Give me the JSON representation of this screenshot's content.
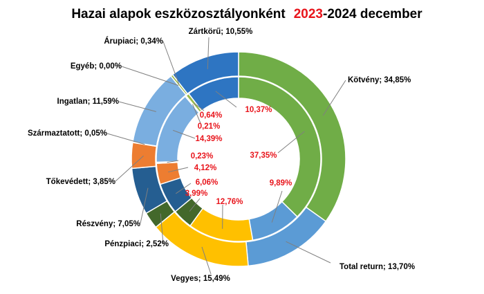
{
  "chart_data": {
    "type": "donut",
    "title": {
      "prefix": "Hazai alapok eszközosztályonként",
      "highlight": "2023",
      "suffix": "-2024 december"
    },
    "rings": [
      {
        "name": "2024 december",
        "ring": "outer",
        "segments": [
          {
            "label": "Kötvény",
            "value": 34.85,
            "text": "Kötvény; 34,85%",
            "color": "#70ad47"
          },
          {
            "label": "Total return",
            "value": 13.7,
            "text": "Total return; 13,70%",
            "color": "#5b9bd5"
          },
          {
            "label": "Vegyes",
            "value": 15.49,
            "text": "Vegyes; 15,49%",
            "color": "#ffc000"
          },
          {
            "label": "Pénzpiaci",
            "value": 2.52,
            "text": "Pénzpiaci; 2,52%",
            "color": "#43682b"
          },
          {
            "label": "Részvény",
            "value": 7.05,
            "text": "Részvény; 7,05%",
            "color": "#255e91"
          },
          {
            "label": "Tőkevédett",
            "value": 3.85,
            "text": "Tőkevédett; 3,85%",
            "color": "#ed7d31"
          },
          {
            "label": "Származtatott",
            "value": 0.05,
            "text": "Származtatott; 0,05%",
            "color": "#a5a5a5"
          },
          {
            "label": "Ingatlan",
            "value": 11.59,
            "text": "Ingatlan; 11,59%",
            "color": "#7aaee0"
          },
          {
            "label": "Egyéb",
            "value": 0.0,
            "text": "Egyéb; 0,00%",
            "color": "#9e480e"
          },
          {
            "label": "Árupiaci",
            "value": 0.34,
            "text": "Árupiaci; 0,34%",
            "color": "#9ab94a"
          },
          {
            "label": "Zártkörű",
            "value": 10.55,
            "text": "Zártkörű; 10,55%",
            "color": "#2e75c2"
          }
        ]
      },
      {
        "name": "2023",
        "ring": "inner",
        "segments": [
          {
            "label": "Kötvény",
            "value": 37.35,
            "text": "37,35%",
            "color": "#70ad47"
          },
          {
            "label": "Total return",
            "value": 9.89,
            "text": "9,89%",
            "color": "#5b9bd5"
          },
          {
            "label": "Vegyes",
            "value": 12.76,
            "text": "12,76%",
            "color": "#ffc000"
          },
          {
            "label": "Pénzpiaci",
            "value": 3.99,
            "text": "3,99%",
            "color": "#43682b"
          },
          {
            "label": "Részvény",
            "value": 6.06,
            "text": "6,06%",
            "color": "#255e91"
          },
          {
            "label": "Tőkevédett",
            "value": 4.12,
            "text": "4,12%",
            "color": "#ed7d31"
          },
          {
            "label": "Származtatott",
            "value": 0.23,
            "text": "0,23%",
            "color": "#a5a5a5"
          },
          {
            "label": "Ingatlan",
            "value": 14.39,
            "text": "14,39%",
            "color": "#7aaee0"
          },
          {
            "label": "Egyéb",
            "value": 0.21,
            "text": "0,21%",
            "color": "#9e480e"
          },
          {
            "label": "Árupiaci",
            "value": 0.64,
            "text": "0,64%",
            "color": "#9ab94a"
          },
          {
            "label": "Zártkörű",
            "value": 10.37,
            "text": "10,37%",
            "color": "#2e75c2"
          }
        ]
      }
    ]
  }
}
